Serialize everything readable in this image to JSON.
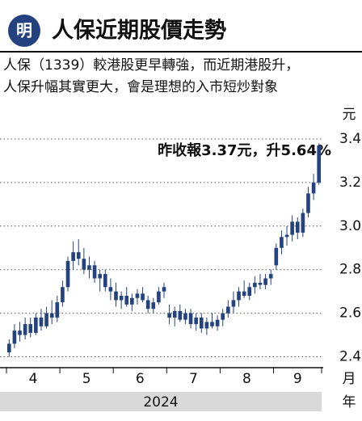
{
  "chart_data": {
    "type": "candlestick",
    "logo": "明",
    "title": "人保近期股價走勢",
    "subtitle": [
      "人保（1339）較港股更早轉強，而近期港股升，",
      "人保升幅其實更大，會是理想的入市短炒對象"
    ],
    "annotation": "昨收報3.37元，升5.64%",
    "y_unit": "元",
    "x_unit": "月",
    "year_unit": "年",
    "year": "2024",
    "color": "#23427f",
    "grid": true,
    "ylim": [
      2.35,
      3.45
    ],
    "yticks": [
      2.4,
      2.6,
      2.8,
      {
        "value": 3,
        "label": "3.0"
      },
      3.2,
      3.4
    ],
    "months": [
      {
        "label": "4",
        "candles": [
          {
            "o": 2.42,
            "h": 2.48,
            "l": 2.4,
            "c": 2.46
          },
          {
            "o": 2.46,
            "h": 2.55,
            "l": 2.44,
            "c": 2.52
          },
          {
            "o": 2.52,
            "h": 2.56,
            "l": 2.47,
            "c": 2.5
          },
          {
            "o": 2.5,
            "h": 2.58,
            "l": 2.48,
            "c": 2.55
          },
          {
            "o": 2.55,
            "h": 2.58,
            "l": 2.49,
            "c": 2.51
          },
          {
            "o": 2.51,
            "h": 2.6,
            "l": 2.5,
            "c": 2.58
          },
          {
            "o": 2.58,
            "h": 2.62,
            "l": 2.52,
            "c": 2.54
          },
          {
            "o": 2.54,
            "h": 2.63,
            "l": 2.53,
            "c": 2.6
          },
          {
            "o": 2.6,
            "h": 2.66,
            "l": 2.55,
            "c": 2.58
          },
          {
            "o": 2.58,
            "h": 2.68,
            "l": 2.56,
            "c": 2.65
          }
        ]
      },
      {
        "label": "5",
        "candles": [
          {
            "o": 2.65,
            "h": 2.75,
            "l": 2.63,
            "c": 2.72
          },
          {
            "o": 2.72,
            "h": 2.86,
            "l": 2.7,
            "c": 2.84
          },
          {
            "o": 2.84,
            "h": 2.93,
            "l": 2.8,
            "c": 2.88
          },
          {
            "o": 2.88,
            "h": 2.94,
            "l": 2.82,
            "c": 2.85
          },
          {
            "o": 2.85,
            "h": 2.9,
            "l": 2.78,
            "c": 2.8
          },
          {
            "o": 2.8,
            "h": 2.86,
            "l": 2.76,
            "c": 2.82
          },
          {
            "o": 2.82,
            "h": 2.84,
            "l": 2.74,
            "c": 2.76
          },
          {
            "o": 2.76,
            "h": 2.8,
            "l": 2.7,
            "c": 2.78
          },
          {
            "o": 2.78,
            "h": 2.8,
            "l": 2.7,
            "c": 2.72
          },
          {
            "o": 2.72,
            "h": 2.76,
            "l": 2.66,
            "c": 2.7
          }
        ]
      },
      {
        "label": "6",
        "candles": [
          {
            "o": 2.7,
            "h": 2.74,
            "l": 2.63,
            "c": 2.66
          },
          {
            "o": 2.66,
            "h": 2.7,
            "l": 2.62,
            "c": 2.68
          },
          {
            "o": 2.68,
            "h": 2.72,
            "l": 2.63,
            "c": 2.64
          },
          {
            "o": 2.64,
            "h": 2.69,
            "l": 2.61,
            "c": 2.67
          },
          {
            "o": 2.67,
            "h": 2.71,
            "l": 2.64,
            "c": 2.69
          },
          {
            "o": 2.69,
            "h": 2.72,
            "l": 2.65,
            "c": 2.66
          },
          {
            "o": 2.66,
            "h": 2.68,
            "l": 2.6,
            "c": 2.62
          },
          {
            "o": 2.62,
            "h": 2.67,
            "l": 2.6,
            "c": 2.65
          },
          {
            "o": 2.65,
            "h": 2.72,
            "l": 2.64,
            "c": 2.7
          },
          {
            "o": 2.7,
            "h": 2.74,
            "l": 2.67,
            "c": 2.72
          }
        ]
      },
      {
        "label": "7",
        "candles": [
          {
            "o": 2.6,
            "h": 2.64,
            "l": 2.55,
            "c": 2.58
          },
          {
            "o": 2.58,
            "h": 2.63,
            "l": 2.54,
            "c": 2.61
          },
          {
            "o": 2.61,
            "h": 2.64,
            "l": 2.56,
            "c": 2.57
          },
          {
            "o": 2.57,
            "h": 2.62,
            "l": 2.55,
            "c": 2.6
          },
          {
            "o": 2.6,
            "h": 2.62,
            "l": 2.53,
            "c": 2.55
          },
          {
            "o": 2.55,
            "h": 2.6,
            "l": 2.52,
            "c": 2.58
          },
          {
            "o": 2.58,
            "h": 2.6,
            "l": 2.51,
            "c": 2.53
          },
          {
            "o": 2.53,
            "h": 2.58,
            "l": 2.5,
            "c": 2.56
          },
          {
            "o": 2.56,
            "h": 2.6,
            "l": 2.53,
            "c": 2.54
          },
          {
            "o": 2.54,
            "h": 2.59,
            "l": 2.52,
            "c": 2.57
          }
        ]
      },
      {
        "label": "8",
        "candles": [
          {
            "o": 2.57,
            "h": 2.62,
            "l": 2.54,
            "c": 2.6
          },
          {
            "o": 2.6,
            "h": 2.66,
            "l": 2.58,
            "c": 2.63
          },
          {
            "o": 2.63,
            "h": 2.7,
            "l": 2.6,
            "c": 2.66
          },
          {
            "o": 2.66,
            "h": 2.72,
            "l": 2.63,
            "c": 2.7
          },
          {
            "o": 2.7,
            "h": 2.75,
            "l": 2.67,
            "c": 2.68
          },
          {
            "o": 2.68,
            "h": 2.74,
            "l": 2.66,
            "c": 2.72
          },
          {
            "o": 2.72,
            "h": 2.77,
            "l": 2.69,
            "c": 2.74
          },
          {
            "o": 2.74,
            "h": 2.78,
            "l": 2.71,
            "c": 2.73
          },
          {
            "o": 2.73,
            "h": 2.78,
            "l": 2.71,
            "c": 2.76
          },
          {
            "o": 2.76,
            "h": 2.8,
            "l": 2.73,
            "c": 2.78
          }
        ]
      },
      {
        "label": "9",
        "candles": [
          {
            "o": 2.82,
            "h": 2.92,
            "l": 2.8,
            "c": 2.9
          },
          {
            "o": 2.9,
            "h": 2.98,
            "l": 2.87,
            "c": 2.95
          },
          {
            "o": 2.95,
            "h": 3.0,
            "l": 2.91,
            "c": 2.96
          },
          {
            "o": 2.96,
            "h": 3.05,
            "l": 2.93,
            "c": 3.02
          },
          {
            "o": 3.02,
            "h": 3.04,
            "l": 2.94,
            "c": 2.97
          },
          {
            "o": 2.97,
            "h": 3.08,
            "l": 2.95,
            "c": 3.06
          },
          {
            "o": 3.06,
            "h": 3.18,
            "l": 3.04,
            "c": 3.15
          },
          {
            "o": 3.15,
            "h": 3.24,
            "l": 3.12,
            "c": 3.2
          },
          {
            "o": 3.2,
            "h": 3.38,
            "l": 3.19,
            "c": 3.37
          }
        ]
      }
    ]
  }
}
